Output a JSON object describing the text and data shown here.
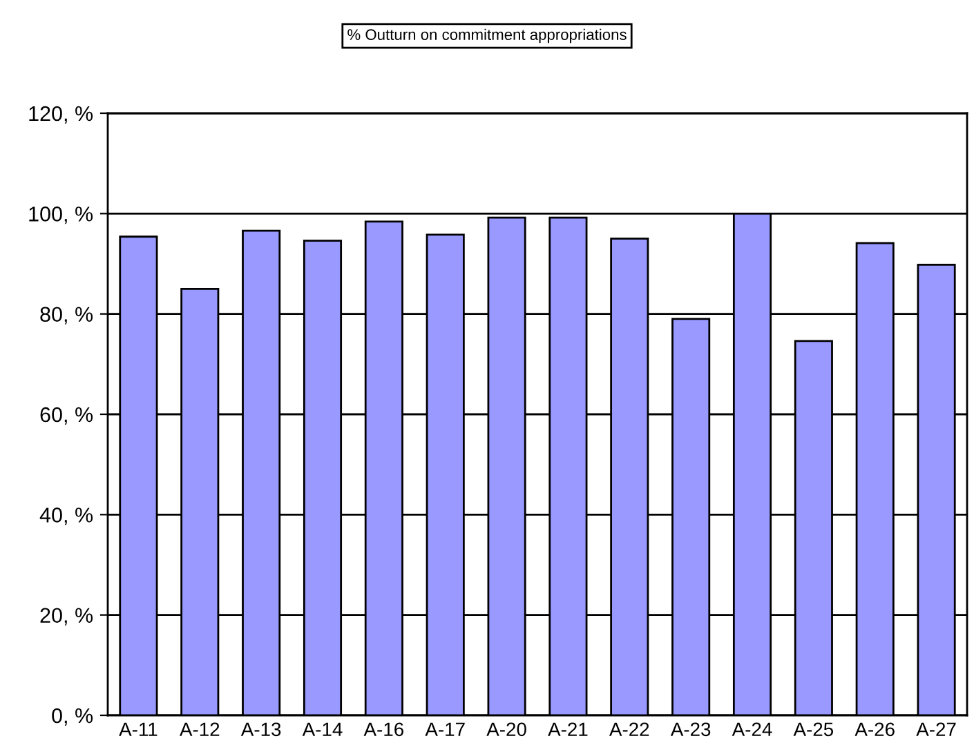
{
  "chart_data": {
    "type": "bar",
    "title": "% Outturn on commitment appropriations",
    "categories": [
      "A-11",
      "A-12",
      "A-13",
      "A-14",
      "A-16",
      "A-17",
      "A-20",
      "A-21",
      "A-22",
      "A-23",
      "A-24",
      "A-25",
      "A-26",
      "A-27"
    ],
    "values": [
      95.4,
      85.0,
      96.6,
      94.6,
      98.4,
      95.8,
      99.2,
      99.2,
      95.0,
      79.0,
      100.0,
      74.6,
      94.1,
      89.8
    ],
    "color": "#9999ff",
    "ylim": [
      0,
      120
    ],
    "yticks": [
      {
        "value": 0,
        "label": "0, %"
      },
      {
        "value": 20,
        "label": "20, %"
      },
      {
        "value": 40,
        "label": "40, %"
      },
      {
        "value": 60,
        "label": "60, %"
      },
      {
        "value": 80,
        "label": "80, %"
      },
      {
        "value": 100,
        "label": "100, %"
      },
      {
        "value": 120,
        "label": "120, %"
      }
    ],
    "grid": "y"
  }
}
